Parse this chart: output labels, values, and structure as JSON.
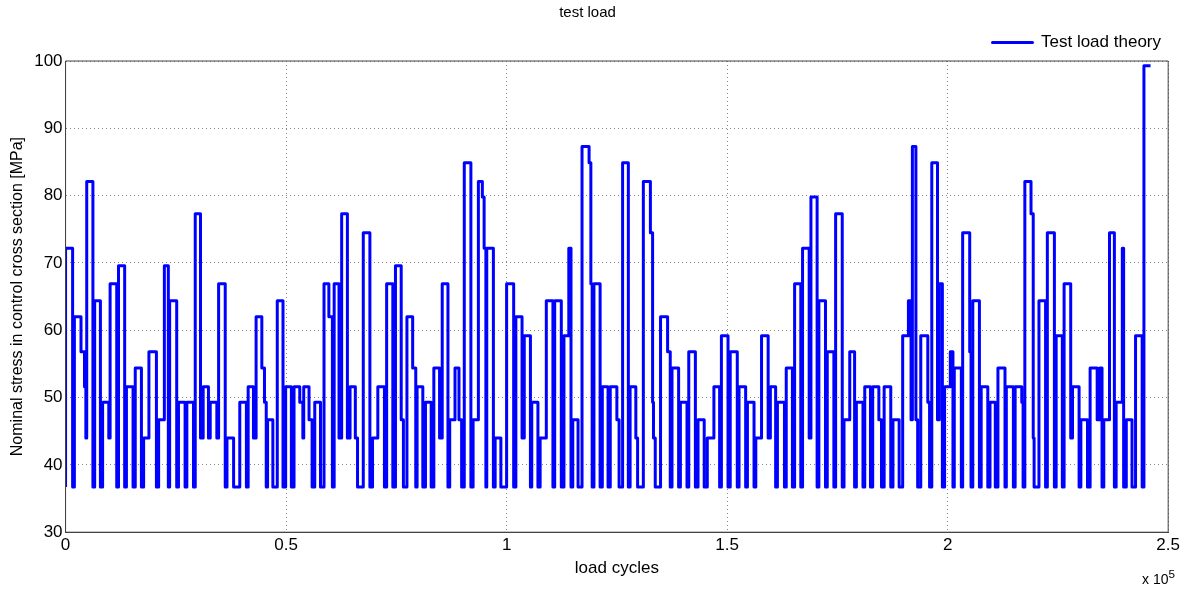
{
  "chart_data": {
    "type": "step",
    "title": "test load",
    "xlabel": "load cycles",
    "ylabel": "Nominal stress in control cross section [MPa]",
    "annotations": [
      "x 10$^{5}$"
    ],
    "xlim": [
      0,
      2.5
    ],
    "xticks": [
      0,
      0.5,
      1,
      1.5,
      2,
      2.5
    ],
    "ylim": [
      30,
      100
    ],
    "yticks": [
      30,
      40,
      50,
      60,
      70,
      80,
      90,
      100
    ],
    "grid": true,
    "legend": "top right",
    "marker": "none",
    "line_style": "solid",
    "series": [
      {
        "name": "Test load theory",
        "color": "#0000ff",
        "x": [
          0,
          0.016,
          0.02,
          0.035,
          0.043,
          0.046,
          0.048,
          0.062,
          0.066,
          0.079,
          0.084,
          0.098,
          0.101,
          0.116,
          0.12,
          0.134,
          0.138,
          0.153,
          0.158,
          0.172,
          0.177,
          0.189,
          0.206,
          0.211,
          0.224,
          0.233,
          0.236,
          0.252,
          0.256,
          0.271,
          0.275,
          0.29,
          0.294,
          0.306,
          0.312,
          0.324,
          0.328,
          0.343,
          0.347,
          0.362,
          0.366,
          0.381,
          0.395,
          0.41,
          0.414,
          0.426,
          0.432,
          0.445,
          0.451,
          0.455,
          0.458,
          0.47,
          0.48,
          0.493,
          0.499,
          0.512,
          0.518,
          0.531,
          0.538,
          0.54,
          0.552,
          0.559,
          0.565,
          0.578,
          0.586,
          0.597,
          0.605,
          0.609,
          0.62,
          0.626,
          0.639,
          0.645,
          0.657,
          0.662,
          0.675,
          0.69,
          0.696,
          0.708,
          0.723,
          0.728,
          0.742,
          0.748,
          0.761,
          0.766,
          0.774,
          0.787,
          0.794,
          0.797,
          0.81,
          0.816,
          0.829,
          0.835,
          0.848,
          0.854,
          0.867,
          0.871,
          0.883,
          0.892,
          0.898,
          0.904,
          0.919,
          0.924,
          0.936,
          0.945,
          0.949,
          0.953,
          0.955,
          0.97,
          0.974,
          0.987,
          1.0,
          1.016,
          1.021,
          1.035,
          1.04,
          1.054,
          1.057,
          1.071,
          1.076,
          1.09,
          1.105,
          1.109,
          1.124,
          1.13,
          1.141,
          1.146,
          1.15,
          1.162,
          1.171,
          1.187,
          1.191,
          1.194,
          1.198,
          1.212,
          1.217,
          1.23,
          1.235,
          1.25,
          1.255,
          1.263,
          1.276,
          1.28,
          1.293,
          1.297,
          1.31,
          1.326,
          1.331,
          1.333,
          1.337,
          1.349,
          1.365,
          1.371,
          1.375,
          1.39,
          1.394,
          1.409,
          1.413,
          1.428,
          1.434,
          1.448,
          1.455,
          1.47,
          1.483,
          1.487,
          1.502,
          1.507,
          1.523,
          1.527,
          1.542,
          1.546,
          1.561,
          1.565,
          1.578,
          1.593,
          1.598,
          1.61,
          1.614,
          1.63,
          1.634,
          1.648,
          1.653,
          1.667,
          1.671,
          1.686,
          1.69,
          1.704,
          1.708,
          1.723,
          1.727,
          1.742,
          1.746,
          1.761,
          1.765,
          1.778,
          1.789,
          1.793,
          1.808,
          1.812,
          1.825,
          1.83,
          1.844,
          1.85,
          1.856,
          1.871,
          1.876,
          1.89,
          1.898,
          1.911,
          1.917,
          1.92,
          1.928,
          1.932,
          1.939,
          1.955,
          1.959,
          1.964,
          1.977,
          1.981,
          1.988,
          1.993,
          2.006,
          2.012,
          2.015,
          2.031,
          2.034,
          2.05,
          2.053,
          2.057,
          2.072,
          2.076,
          2.091,
          2.096,
          2.108,
          2.114,
          2.13,
          2.133,
          2.149,
          2.153,
          2.168,
          2.171,
          2.175,
          2.189,
          2.194,
          2.196,
          2.207,
          2.222,
          2.226,
          2.242,
          2.246,
          2.26,
          2.264,
          2.279,
          2.283,
          2.298,
          2.302,
          2.317,
          2.323,
          2.339,
          2.345,
          2.35,
          2.354,
          2.367,
          2.378,
          2.382,
          2.396,
          2.399,
          2.405,
          2.418,
          2.426,
          2.441,
          2.445,
          2.46
        ],
        "values": [
          36.7,
          72.2,
          36.7,
          62,
          56.8,
          51.6,
          44,
          82.1,
          36.7,
          64.4,
          36.7,
          49.3,
          44,
          66.9,
          36.7,
          69.6,
          36.7,
          51.6,
          36.7,
          54.4,
          36.7,
          44,
          56.8,
          36.7,
          46.7,
          69.6,
          36.7,
          64.4,
          36.7,
          49.3,
          36.7,
          49.3,
          36.7,
          77.3,
          44,
          51.6,
          44,
          49.3,
          44,
          66.9,
          36.7,
          44,
          36.7,
          49.3,
          36.7,
          51.6,
          44,
          62,
          54.4,
          49.3,
          36.7,
          46.7,
          36.7,
          64.4,
          36.7,
          51.6,
          36.7,
          51.6,
          49.3,
          44,
          51.6,
          46.7,
          36.7,
          49.3,
          36.7,
          66.9,
          62,
          36.7,
          66.9,
          44,
          77.3,
          44,
          51.6,
          44,
          36.7,
          74.5,
          36.7,
          44,
          51.6,
          36.7,
          66.9,
          36.7,
          69.6,
          46.7,
          36.7,
          62,
          54.4,
          36.7,
          51.6,
          36.7,
          49.3,
          36.7,
          54.4,
          44,
          66.9,
          36.7,
          46.7,
          54.4,
          46.7,
          36.7,
          84.9,
          36.7,
          46.7,
          82.1,
          79.8,
          72.2,
          36.7,
          72.2,
          36.7,
          44,
          36.7,
          66.9,
          36.7,
          62,
          44,
          59.2,
          36.7,
          49.3,
          36.7,
          44,
          64.4,
          36.7,
          64.4,
          36.7,
          59.2,
          72.2,
          36.7,
          46.7,
          36.7,
          87.3,
          84.9,
          66.9,
          36.7,
          66.9,
          36.7,
          51.6,
          36.7,
          51.6,
          46.7,
          36.7,
          84.9,
          36.7,
          51.6,
          44,
          36.7,
          82.1,
          74.5,
          49.3,
          44,
          36.7,
          62,
          56.8,
          36.7,
          54.4,
          36.7,
          49.3,
          36.7,
          56.8,
          36.7,
          46.7,
          36.7,
          44,
          51.6,
          36.7,
          59.2,
          36.7,
          56.8,
          36.7,
          51.6,
          36.7,
          49.3,
          36.7,
          44,
          59.2,
          44,
          51.6,
          36.7,
          49.3,
          36.7,
          54.4,
          36.7,
          66.9,
          36.7,
          72.2,
          44,
          79.8,
          36.7,
          64.4,
          36.7,
          56.8,
          36.7,
          77.3,
          36.7,
          46.7,
          56.8,
          36.7,
          49.3,
          36.7,
          51.6,
          36.7,
          51.6,
          46.7,
          36.7,
          51.6,
          36.7,
          46.7,
          36.7,
          59.2,
          64.4,
          46.7,
          87.3,
          46.7,
          36.7,
          59.2,
          49.3,
          36.7,
          84.9,
          46.7,
          66.9,
          36.7,
          51.6,
          56.8,
          36.7,
          54.4,
          36.7,
          74.5,
          56.8,
          36.7,
          64.4,
          36.7,
          51.6,
          36.7,
          49.3,
          36.7,
          54.4,
          36.7,
          51.6,
          36.7,
          51.6,
          49.3,
          36.7,
          82.1,
          77.3,
          44,
          36.7,
          64.4,
          36.7,
          74.5,
          36.7,
          59.2,
          36.7,
          66.9,
          44,
          51.6,
          36.7,
          46.7,
          36.7,
          54.4,
          46.7,
          54.4,
          36.7,
          46.7,
          74.5,
          36.7,
          49.3,
          72.2,
          36.7,
          46.7,
          36.7,
          59.2,
          36.7,
          99.3
        ]
      }
    ]
  }
}
